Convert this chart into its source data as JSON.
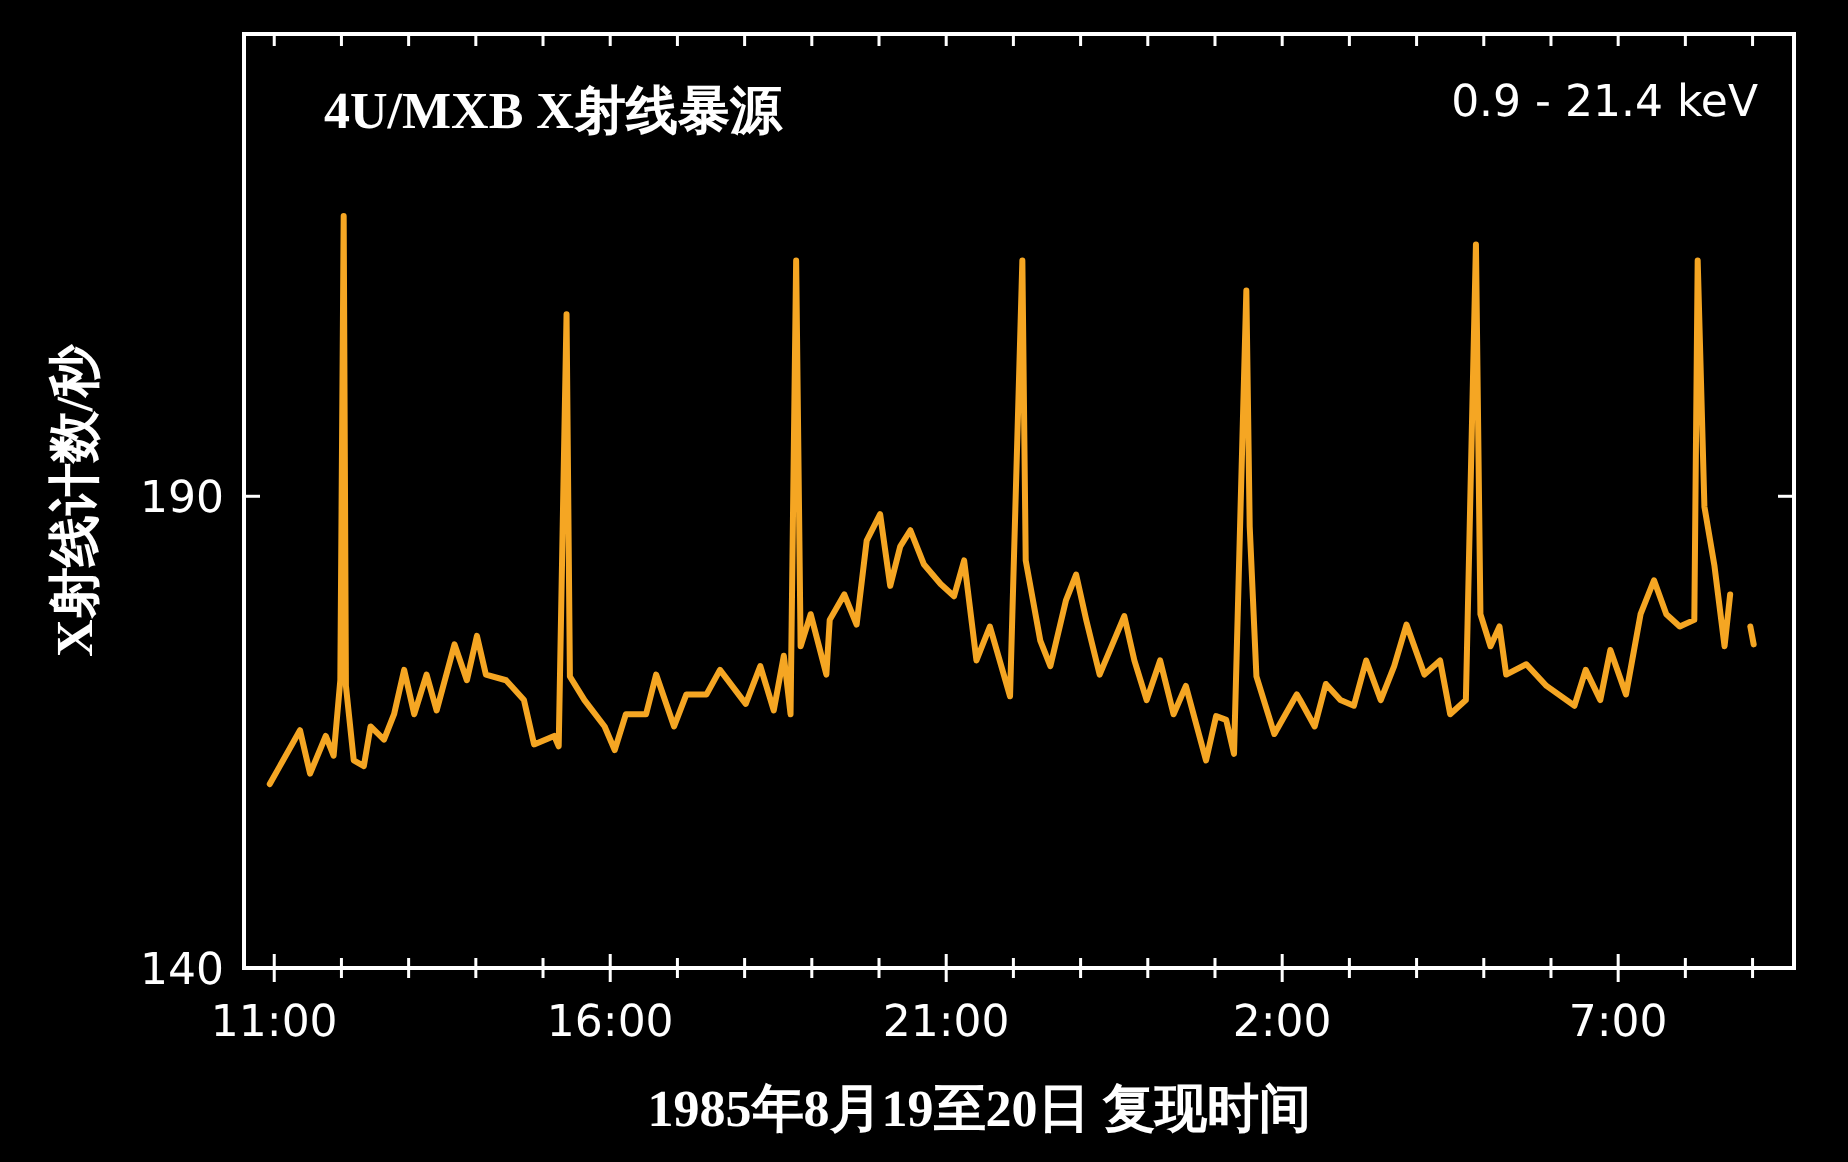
{
  "chart_data": {
    "type": "line",
    "title": "4U/MXB X射线暴源",
    "xlabel": "1985年8月19至20日 复现时间",
    "ylabel": "X射线计数/秒",
    "annotations": [
      "0.9 - 21.4 keV"
    ],
    "xlim": [
      "1985-08-19T10:33",
      "1985-08-20T09:37"
    ],
    "ylim": [
      140,
      239
    ],
    "xticks": [
      {
        "value": "1985-08-19T11:00",
        "label": "11:00"
      },
      {
        "value": "1985-08-19T12:00",
        "label": null
      },
      {
        "value": "1985-08-19T13:00",
        "label": null
      },
      {
        "value": "1985-08-19T14:00",
        "label": null
      },
      {
        "value": "1985-08-19T15:00",
        "label": null
      },
      {
        "value": "1985-08-19T16:00",
        "label": "16:00"
      },
      {
        "value": "1985-08-19T17:00",
        "label": null
      },
      {
        "value": "1985-08-19T18:00",
        "label": null
      },
      {
        "value": "1985-08-19T19:00",
        "label": null
      },
      {
        "value": "1985-08-19T20:00",
        "label": null
      },
      {
        "value": "1985-08-19T21:00",
        "label": "21:00"
      },
      {
        "value": "1985-08-19T22:00",
        "label": null
      },
      {
        "value": "1985-08-19T23:00",
        "label": null
      },
      {
        "value": "1985-08-20T00:00",
        "label": null
      },
      {
        "value": "1985-08-20T01:00",
        "label": null
      },
      {
        "value": "1985-08-20T02:00",
        "label": "2:00"
      },
      {
        "value": "1985-08-20T03:00",
        "label": null
      },
      {
        "value": "1985-08-20T04:00",
        "label": null
      },
      {
        "value": "1985-08-20T05:00",
        "label": null
      },
      {
        "value": "1985-08-20T06:00",
        "label": null
      },
      {
        "value": "1985-08-20T07:00",
        "label": "7:00"
      },
      {
        "value": "1985-08-20T08:00",
        "label": null
      },
      {
        "value": "1985-08-20T09:00",
        "label": null
      }
    ],
    "yticks": [
      140,
      190
    ],
    "series": [
      {
        "color": "#f5a623",
        "x": [
          "1985-08-19T10:56",
          "1985-08-19T11:05",
          "1985-08-19T11:23",
          "1985-08-19T11:32",
          "1985-08-19T11:46",
          "1985-08-19T11:53",
          "1985-08-19T11:59",
          "1985-08-19T12:02",
          "1985-08-19T12:04",
          "1985-08-19T12:11",
          "1985-08-19T12:20",
          "1985-08-19T12:26",
          "1985-08-19T12:38",
          "1985-08-19T12:47",
          "1985-08-19T12:56",
          "1985-08-19T13:05",
          "1985-08-19T13:16",
          "1985-08-19T13:25",
          "1985-08-19T13:41",
          "1985-08-19T13:52",
          "1985-08-19T14:01",
          "1985-08-19T14:09",
          "1985-08-19T14:27",
          "1985-08-19T14:43",
          "1985-08-19T14:52",
          "1985-08-19T15:10",
          "1985-08-19T15:14",
          "1985-08-19T15:21",
          "1985-08-19T15:24",
          "1985-08-19T15:37",
          "1985-08-19T15:55",
          "1985-08-19T16:04",
          "1985-08-19T16:14",
          "1985-08-19T16:32",
          "1985-08-19T16:41",
          "1985-08-19T16:57",
          "1985-08-19T17:08",
          "1985-08-19T17:26",
          "1985-08-19T17:38",
          "1985-08-19T18:01",
          "1985-08-19T18:14",
          "1985-08-19T18:26",
          "1985-08-19T18:35",
          "1985-08-19T18:41",
          "1985-08-19T18:46",
          "1985-08-19T18:50",
          "1985-08-19T18:59",
          "1985-08-19T19:13",
          "1985-08-19T19:16",
          "1985-08-19T19:29",
          "1985-08-19T19:40",
          "1985-08-19T19:49",
          "1985-08-19T20:01",
          "1985-08-19T20:10",
          "1985-08-19T20:19",
          "1985-08-19T20:28",
          "1985-08-19T20:40",
          "1985-08-19T20:55",
          "1985-08-19T21:07",
          "1985-08-19T21:16",
          "1985-08-19T21:27",
          "1985-08-19T21:39",
          "1985-08-19T21:57",
          "1985-08-19T22:08",
          "1985-08-19T22:11",
          "1985-08-19T22:24",
          "1985-08-19T22:33",
          "1985-08-19T22:47",
          "1985-08-19T22:56",
          "1985-08-19T23:05",
          "1985-08-19T23:17",
          "1985-08-19T23:39",
          "1985-08-19T23:48",
          "1985-08-19T23:59",
          "1985-08-20T00:11",
          "1985-08-20T00:23",
          "1985-08-20T00:34",
          "1985-08-20T00:52",
          "1985-08-20T01:01",
          "1985-08-20T01:10",
          "1985-08-20T01:17",
          "1985-08-20T01:28",
          "1985-08-20T01:31",
          "1985-08-20T01:37",
          "1985-08-20T01:53",
          "1985-08-20T02:13",
          "1985-08-20T02:16",
          "1985-08-20T02:29",
          "1985-08-20T02:39",
          "1985-08-20T02:52",
          "1985-08-20T03:04",
          "1985-08-20T03:15",
          "1985-08-20T03:28",
          "1985-08-20T03:40",
          "1985-08-20T03:51",
          "1985-08-20T04:07",
          "1985-08-20T04:21",
          "1985-08-20T04:30",
          "1985-08-20T04:44",
          "1985-08-20T04:53",
          "1985-08-20T04:57",
          "1985-08-20T05:06",
          "1985-08-20T05:14",
          "1985-08-20T05:20",
          "1985-08-20T05:38",
          "1985-08-20T05:56",
          "1985-08-20T06:21",
          "1985-08-20T06:31",
          "1985-08-20T06:44",
          "1985-08-20T06:53",
          "1985-08-20T07:07",
          "1985-08-20T07:20",
          "1985-08-20T07:32",
          "1985-08-20T07:43",
          "1985-08-20T07:55",
          "1985-08-20T08:08",
          "1985-08-20T08:11",
          "1985-08-20T08:17",
          "1985-08-20T08:26",
          "1985-08-20T08:35",
          "1985-08-20T08:40",
          "1985-08-20T08:48",
          "1985-08-20T08:58",
          "1985-08-20T09:01"
        ],
        "values": [
          159.5,
          161.4,
          165.2,
          160.6,
          164.6,
          162.5,
          170.5,
          219.7,
          169.9,
          162.0,
          161.4,
          165.6,
          164.2,
          166.9,
          171.6,
          166.9,
          171.1,
          167.3,
          174.3,
          170.5,
          175.2,
          171.1,
          170.5,
          168.4,
          163.7,
          164.6,
          163.5,
          209.3,
          170.9,
          168.4,
          165.6,
          163.1,
          166.9,
          166.9,
          171.1,
          165.6,
          169.0,
          169.0,
          171.6,
          168.0,
          172.0,
          167.3,
          173.1,
          166.9,
          215.0,
          174.1,
          177.5,
          171.1,
          176.9,
          179.6,
          176.4,
          185.3,
          188.1,
          180.5,
          184.7,
          186.4,
          182.8,
          180.7,
          179.4,
          183.2,
          172.6,
          176.2,
          168.8,
          215.0,
          183.2,
          174.7,
          172.0,
          179.0,
          181.7,
          176.9,
          171.1,
          177.3,
          172.6,
          168.4,
          172.6,
          166.9,
          169.9,
          162.0,
          166.7,
          166.3,
          162.7,
          211.8,
          186.8,
          170.9,
          164.8,
          169.0,
          168.4,
          165.6,
          170.1,
          168.4,
          167.8,
          172.6,
          168.4,
          172.0,
          176.4,
          171.1,
          172.6,
          166.9,
          168.4,
          216.7,
          177.5,
          174.1,
          176.2,
          171.1,
          172.2,
          169.9,
          167.8,
          171.6,
          168.4,
          173.7,
          169.0,
          177.5,
          181.1,
          177.5,
          176.2,
          176.9,
          215.0,
          188.9,
          182.6,
          174.1,
          179.6,
          null,
          176.2,
          174.3
        ]
      }
    ]
  }
}
